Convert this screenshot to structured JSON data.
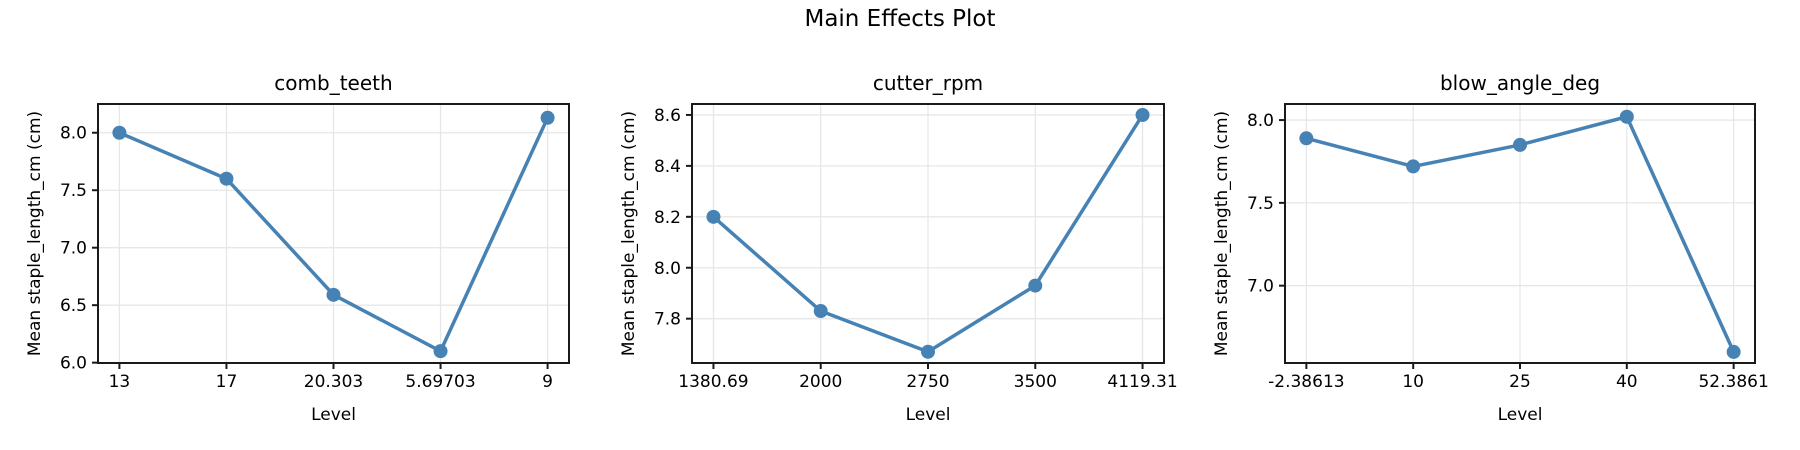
{
  "figure": {
    "suptitle": "Main Effects Plot",
    "accent_color": "#4682B4",
    "grid_color": "#e7e7e7",
    "spine_color": "#1a1a1a",
    "text_color": "#000000"
  },
  "chart_data": [
    {
      "type": "line",
      "title": "comb_teeth",
      "xlabel": "Level",
      "ylabel": "Mean staple_length_cm (cm)",
      "categories": [
        "13",
        "17",
        "20.303",
        "5.69703",
        "9"
      ],
      "values": [
        8.0,
        7.6,
        6.59,
        6.1,
        8.13
      ],
      "yticks": [
        6.0,
        6.5,
        7.0,
        7.5,
        8.0
      ],
      "ytick_labels": [
        "6.0",
        "6.5",
        "7.0",
        "7.5",
        "8.0"
      ],
      "ylim": [
        5.997,
        8.25
      ],
      "grid": true,
      "legend": null
    },
    {
      "type": "line",
      "title": "cutter_rpm",
      "xlabel": "Level",
      "ylabel": "Mean staple_length_cm (cm)",
      "categories": [
        "1380.69",
        "2000",
        "2750",
        "3500",
        "4119.31"
      ],
      "values": [
        8.2,
        7.83,
        7.67,
        7.93,
        8.6
      ],
      "yticks": [
        7.8,
        8.0,
        8.2,
        8.4,
        8.6
      ],
      "ytick_labels": [
        "7.8",
        "8.0",
        "8.2",
        "8.4",
        "8.6"
      ],
      "ylim": [
        7.626,
        8.643
      ],
      "grid": true,
      "legend": null
    },
    {
      "type": "line",
      "title": "blow_angle_deg",
      "xlabel": "Level",
      "ylabel": "Mean staple_length_cm (cm)",
      "categories": [
        "-2.38613",
        "10",
        "25",
        "40",
        "52.3861"
      ],
      "values": [
        7.89,
        7.72,
        7.85,
        8.02,
        6.6
      ],
      "yticks": [
        7.0,
        7.5,
        8.0
      ],
      "ytick_labels": [
        "7.0",
        "7.5",
        "8.0"
      ],
      "ylim": [
        6.533,
        8.097
      ],
      "grid": true,
      "legend": null
    }
  ]
}
